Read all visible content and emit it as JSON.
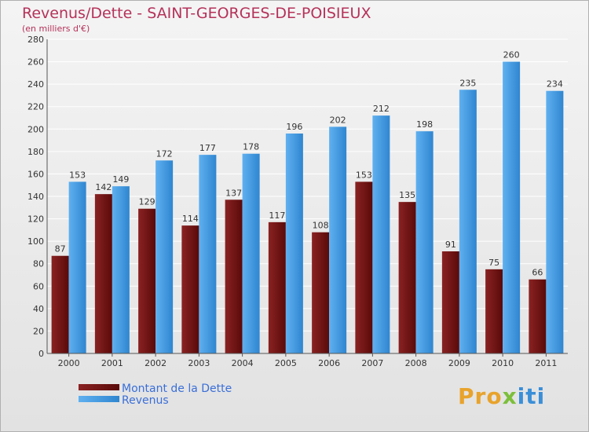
{
  "header": {
    "title": "Revenus/Dette - SAINT-GEORGES-DE-POISIEUX",
    "subtitle": "(en milliers d'€)"
  },
  "logo": {
    "text_part1": "Pro",
    "text_part2": "x",
    "text_part3": "iti"
  },
  "colors": {
    "dette": "#7a1a1a",
    "revenus": "#4aa0e6",
    "grid": "#ffffff",
    "title": "#b5325a",
    "legend_text": "#3a6fd8"
  },
  "chart_data": {
    "type": "bar",
    "title": "Revenus/Dette - SAINT-GEORGES-DE-POISIEUX",
    "subtitle": "(en milliers d'€)",
    "categories": [
      "2000",
      "2001",
      "2002",
      "2003",
      "2004",
      "2005",
      "2006",
      "2007",
      "2008",
      "2009",
      "2010",
      "2011"
    ],
    "series": [
      {
        "name": "Montant de la Dette",
        "values": [
          87,
          142,
          129,
          114,
          137,
          117,
          108,
          153,
          135,
          91,
          75,
          66
        ]
      },
      {
        "name": "Revenus",
        "values": [
          153,
          149,
          172,
          177,
          178,
          196,
          202,
          212,
          198,
          235,
          260,
          234
        ]
      }
    ],
    "ylim": [
      0,
      280
    ],
    "yticks": [
      0,
      20,
      40,
      60,
      80,
      100,
      120,
      140,
      160,
      180,
      200,
      220,
      240,
      260,
      280
    ],
    "grid": true,
    "legend_position": "bottom-left"
  }
}
